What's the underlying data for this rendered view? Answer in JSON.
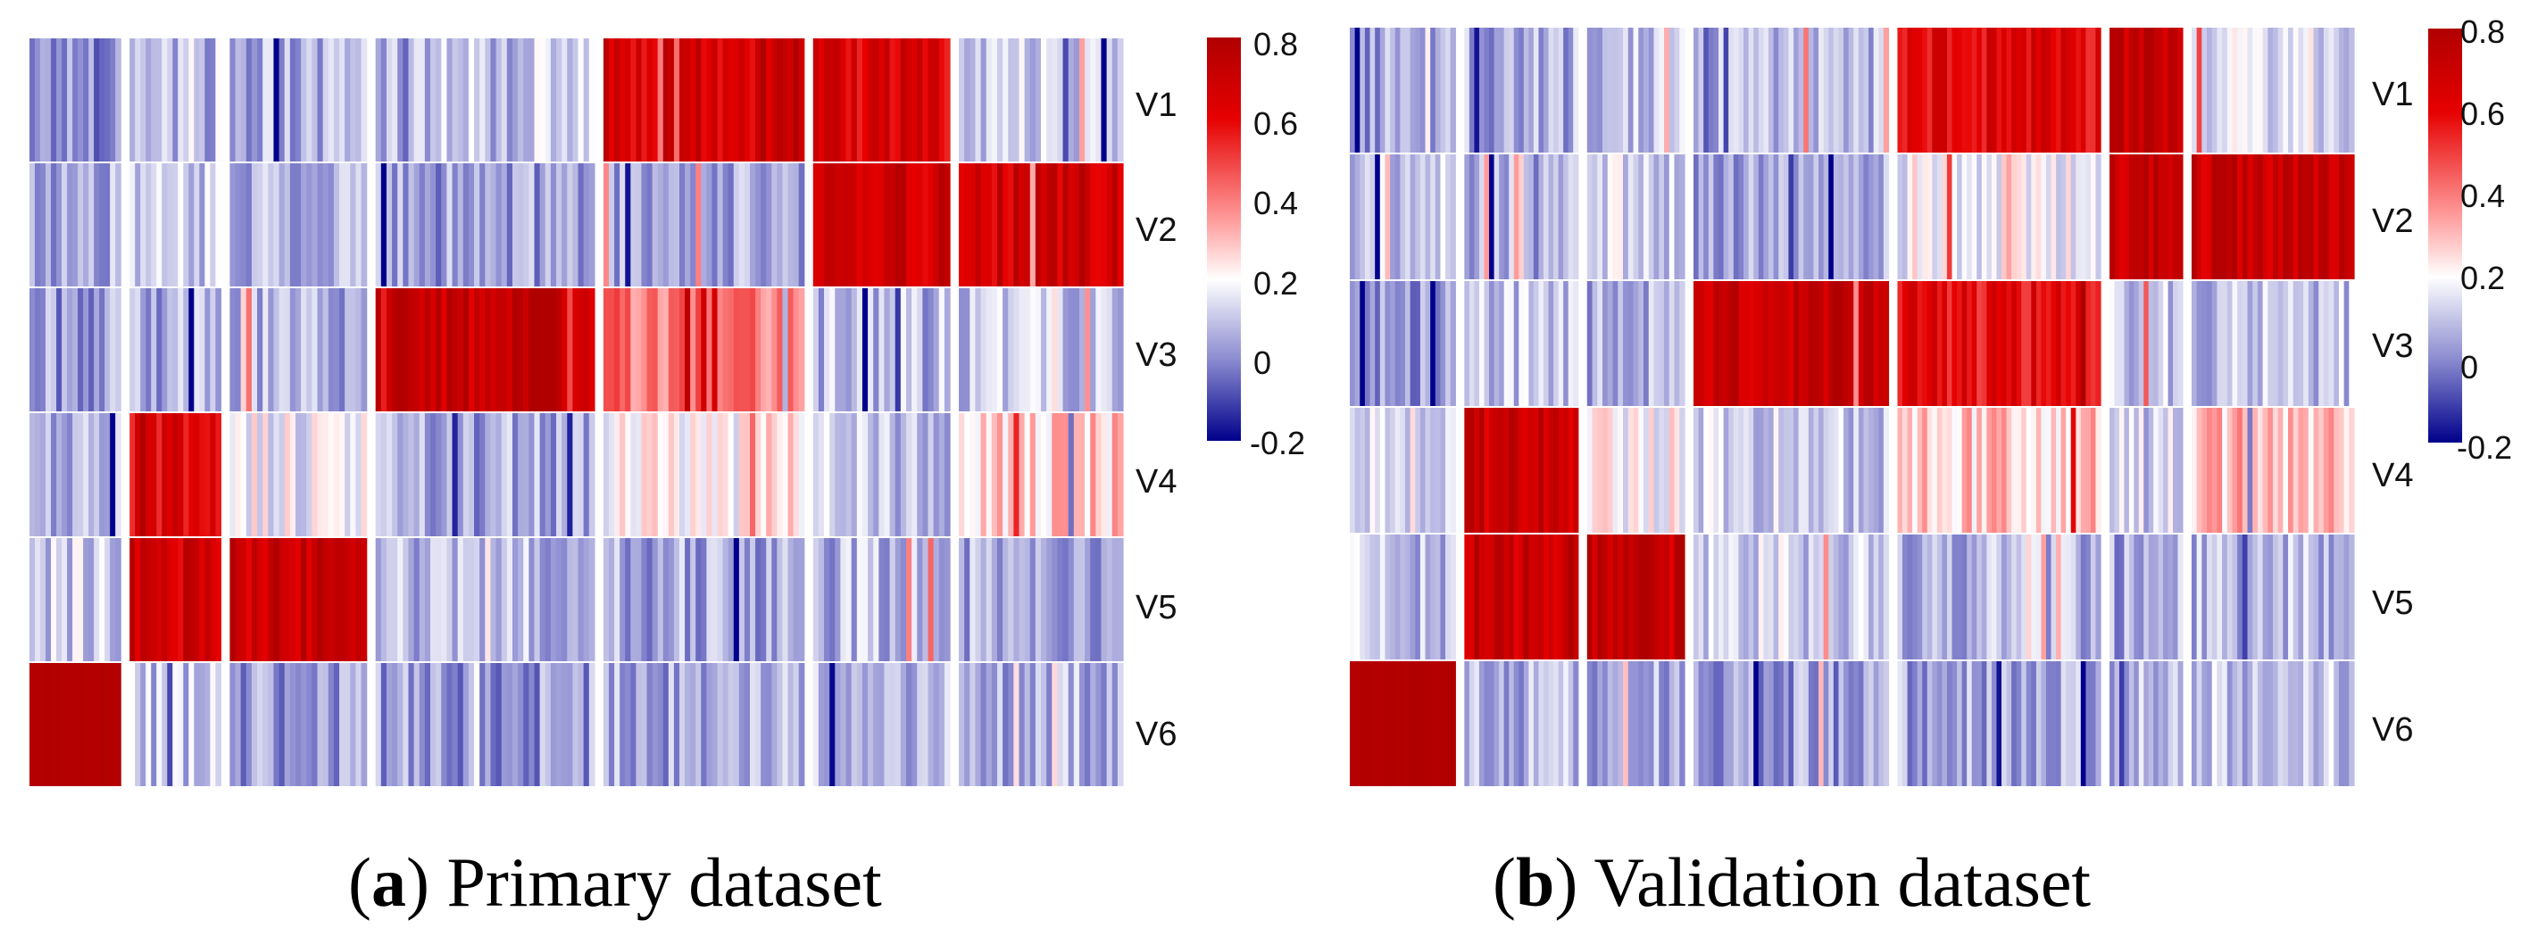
{
  "chart_data": [
    {
      "type": "heatmap",
      "panel": "a",
      "title": "Primary dataset",
      "caption_letter": "a",
      "caption_text": ") Primary dataset",
      "rows": [
        "V1",
        "V2",
        "V3",
        "V4",
        "V5",
        "V6"
      ],
      "column_groups": [
        {
          "size": 1,
          "values": [
            0.02,
            0.05,
            0.03,
            0.06,
            0.12,
            0.8
          ]
        },
        {
          "size": 1,
          "values": [
            0.06,
            0.1,
            0.06,
            0.62,
            0.68,
            0.1
          ]
        },
        {
          "size": 1.5,
          "values": [
            0.07,
            0.08,
            0.06,
            0.18,
            0.7,
            0.03
          ]
        },
        {
          "size": 2.4,
          "values": [
            0.1,
            0.04,
            0.72,
            0.05,
            0.08,
            0.03
          ]
        },
        {
          "size": 2.2,
          "values": [
            0.66,
            0.05,
            0.42,
            0.22,
            0.06,
            0.05
          ]
        },
        {
          "size": 1.5,
          "values": [
            0.65,
            0.68,
            0.08,
            0.1,
            0.08,
            0.06
          ]
        },
        {
          "size": 1.8,
          "values": [
            0.12,
            0.68,
            0.1,
            0.28,
            0.06,
            0.07
          ]
        }
      ],
      "colorbar": {
        "min": -0.2,
        "max": 0.8,
        "ticks": [
          "0.8",
          "0.6",
          "0.4",
          "0.2",
          "0",
          "-0.2"
        ],
        "colors": {
          "low": "#00008b",
          "mid": "#ffffff",
          "high": "#b00000"
        }
      }
    },
    {
      "type": "heatmap",
      "panel": "b",
      "title": "Validation dataset",
      "caption_letter": "b",
      "caption_text": ") Validation dataset",
      "rows": [
        "V1",
        "V2",
        "V3",
        "V4",
        "V5",
        "V6"
      ],
      "column_groups": [
        {
          "size": 1.3,
          "values": [
            0.05,
            0.12,
            0.04,
            0.15,
            0.1,
            0.8
          ]
        },
        {
          "size": 1.4,
          "values": [
            0.06,
            0.05,
            0.1,
            0.7,
            0.7,
            0.08
          ]
        },
        {
          "size": 1.2,
          "values": [
            0.1,
            0.12,
            0.07,
            0.2,
            0.72,
            0.06
          ]
        },
        {
          "size": 2.4,
          "values": [
            0.08,
            0.05,
            0.72,
            0.12,
            0.12,
            0.04
          ]
        },
        {
          "size": 2.5,
          "values": [
            0.62,
            0.18,
            0.6,
            0.28,
            0.08,
            0.05
          ]
        },
        {
          "size": 0.9,
          "values": [
            0.7,
            0.7,
            0.1,
            0.12,
            0.06,
            0.08
          ]
        },
        {
          "size": 2.0,
          "values": [
            0.15,
            0.7,
            0.1,
            0.3,
            0.08,
            0.1
          ]
        }
      ],
      "colorbar": {
        "min": -0.2,
        "max": 0.8,
        "ticks": [
          "0.8",
          "0.6",
          "0.4",
          "0.2",
          "0",
          "-0.2"
        ],
        "colors": {
          "low": "#00008b",
          "mid": "#ffffff",
          "high": "#b00000"
        }
      }
    }
  ]
}
